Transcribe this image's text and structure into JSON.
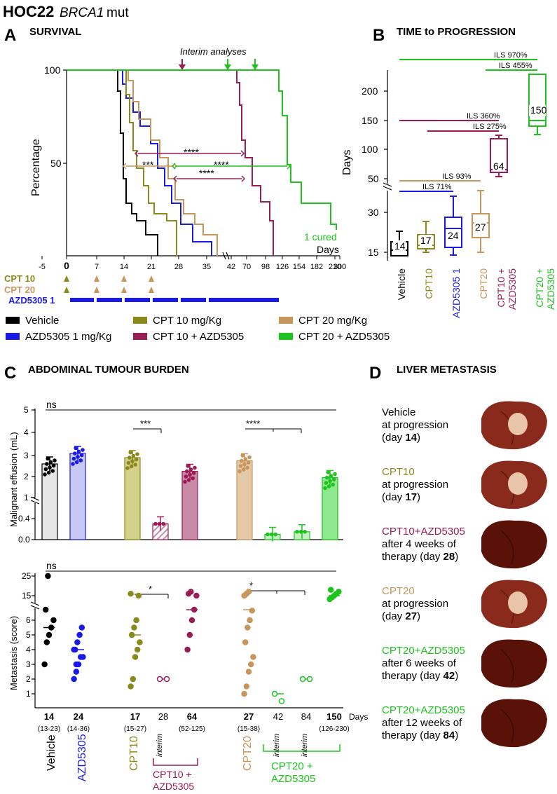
{
  "header": {
    "title": "HOC22",
    "gene": "BRCA1",
    "suffix": "mut"
  },
  "colors": {
    "vehicle": "#000000",
    "azd": "#1a1ae6",
    "cpt10": "#8a8a1c",
    "cpt20": "#c8955a",
    "cpt10azd": "#9b1b55",
    "cpt20azd": "#1dc41d"
  },
  "panelA": {
    "letter": "A",
    "title": "SURVIVAL",
    "interim": "Interim analyses",
    "ylabel": "Percentage",
    "days_label": "Days",
    "cured": "1 cured",
    "sig": [
      "****",
      "***",
      "****",
      "****"
    ],
    "ticks": [
      "-5",
      "0",
      "7",
      "14",
      "21",
      "28",
      "35",
      "42",
      "70",
      "98",
      "126",
      "154",
      "182",
      "210",
      "300"
    ],
    "dosing": {
      "cpt10": "CPT 10",
      "cpt20": "CPT 20",
      "azd": "AZD5305 1"
    }
  },
  "legend": [
    {
      "key": "vehicle",
      "label": "Vehicle"
    },
    {
      "key": "azd",
      "label": "AZD5305 1 mg/Kg"
    },
    {
      "key": "cpt10",
      "label": "CPT 10 mg/Kg"
    },
    {
      "key": "cpt10azd",
      "label": "CPT 10 + AZD5305"
    },
    {
      "key": "cpt20",
      "label": "CPT 20 mg/Kg"
    },
    {
      "key": "cpt20azd",
      "label": "CPT 20 + AZD5305"
    }
  ],
  "panelB": {
    "letter": "B",
    "title": "TIME to PROGRESSION",
    "ylabel": "Days"
  },
  "panelC": {
    "letter": "C",
    "title": "ABDOMINAL TUMOUR BURDEN",
    "ylabel1": "Malignant effusion (mL)",
    "ylabel2": "Metastasis (score)",
    "ns": "ns",
    "days_label": "Days",
    "interim": "interim"
  },
  "panelD": {
    "letter": "D",
    "title": "LIVER METASTASIS"
  },
  "chart_data": [
    {
      "type": "line",
      "title": "SURVIVAL",
      "xlabel": "Days",
      "ylabel": "Percentage",
      "x_ticks": [
        "-5",
        "0",
        "7",
        "14",
        "21",
        "28",
        "35",
        "42",
        "70",
        "98",
        "126",
        "154",
        "182",
        "210",
        "300"
      ],
      "series": [
        {
          "name": "Vehicle",
          "median": 14,
          "range": [
            13,
            23
          ]
        },
        {
          "name": "AZD5305 1 mg/Kg",
          "median": 24,
          "range": [
            14,
            36
          ]
        },
        {
          "name": "CPT 10 mg/Kg",
          "median": 17,
          "range": [
            15,
            27
          ]
        },
        {
          "name": "CPT 20 mg/Kg",
          "median": 27,
          "range": [
            15,
            38
          ]
        },
        {
          "name": "CPT 10 + AZD5305",
          "median": 64,
          "range": [
            52,
            125
          ]
        },
        {
          "name": "CPT 20 + AZD5305",
          "median": 150,
          "range": [
            126,
            230
          ],
          "note": "1 cured"
        }
      ],
      "annotations": [
        "Interim analyses",
        "****",
        "***",
        "****",
        "****"
      ]
    },
    {
      "type": "box",
      "title": "TIME to PROGRESSION",
      "ylabel": "Days",
      "y_ticks": [
        15,
        30,
        50,
        100,
        150,
        200
      ],
      "categories": [
        "Vehicle",
        "CPT10",
        "AZD5305 1",
        "CPT20",
        "CPT10 + AZD5305",
        "CPT20 + AZD5305"
      ],
      "medians": [
        14,
        17,
        24,
        27,
        64,
        150
      ],
      "ils": [
        "ILS 970%",
        "ILS 455%",
        "ILS 360%",
        "ILS 275%",
        "ILS 93%",
        "ILS 71%"
      ]
    },
    {
      "type": "bar",
      "title": "ABDOMINAL TUMOUR BURDEN",
      "ylabel": "Malignant effusion (mL)",
      "y_ticks": [
        0.0,
        0.4,
        1,
        2,
        3,
        4,
        5
      ],
      "categories": [
        "Vehicle",
        "AZD5305",
        "CPT10",
        "CPT10+AZD5305 interim",
        "CPT10 + AZD5305",
        "CPT20",
        "CPT20+AZD5305 interim 42",
        "CPT20+AZD5305 interim 84",
        "CPT20 + AZD5305"
      ],
      "values": [
        2.6,
        3.1,
        2.9,
        0.3,
        2.25,
        2.75,
        0.1,
        0.15,
        1.95
      ],
      "significance": [
        "ns",
        "***",
        "****"
      ]
    },
    {
      "type": "scatter",
      "ylabel": "Metastasis (score)",
      "y_ticks": [
        1,
        2,
        3,
        4,
        5,
        6,
        15,
        25
      ],
      "medians": [
        5.5,
        4.0,
        5.0,
        2.0,
        7.0,
        7.0,
        1.0,
        2.0,
        15.0
      ],
      "days": [
        "14",
        "24",
        "17",
        "28",
        "64",
        "27",
        "42",
        "84",
        "150"
      ],
      "ranges": [
        "(13-23)",
        "(14-36)",
        "(15-27)",
        "",
        "(52-125)",
        "(15-38)",
        "",
        "",
        "(126-230)"
      ],
      "groups": [
        "Vehicle",
        "AZD5305",
        "CPT10",
        "CPT10 + AZD5305",
        "CPT20",
        "CPT20 + AZD5305"
      ]
    }
  ],
  "liver": [
    {
      "line1": "Vehicle",
      "line2": "at progression",
      "line3a": "(day ",
      "day": "14",
      "line3b": ")",
      "key": "vehicle"
    },
    {
      "line1": "CPT10",
      "line2": "at progression",
      "line3a": "(day ",
      "day": "17",
      "line3b": ")",
      "key": "cpt10"
    },
    {
      "line1": "CPT10+AZD5305",
      "line2": "after 4 weeks of",
      "line3a": "therapy (day ",
      "day": "28",
      "line3b": ")",
      "key": "cpt10azd"
    },
    {
      "line1": "CPT20",
      "line2": "at progression",
      "line3a": "(day ",
      "day": "27",
      "line3b": ")",
      "key": "cpt20"
    },
    {
      "line1": "CPT20+AZD5305",
      "line2": "after 6 weeks of",
      "line3a": "therapy (day ",
      "day": "42",
      "line3b": ")",
      "key": "cpt20azd"
    },
    {
      "line1": "CPT20+AZD5305",
      "line2": "after 12 weeks of",
      "line3a": "therapy (day ",
      "day": "84",
      "line3b": ")",
      "key": "cpt20azd"
    }
  ]
}
